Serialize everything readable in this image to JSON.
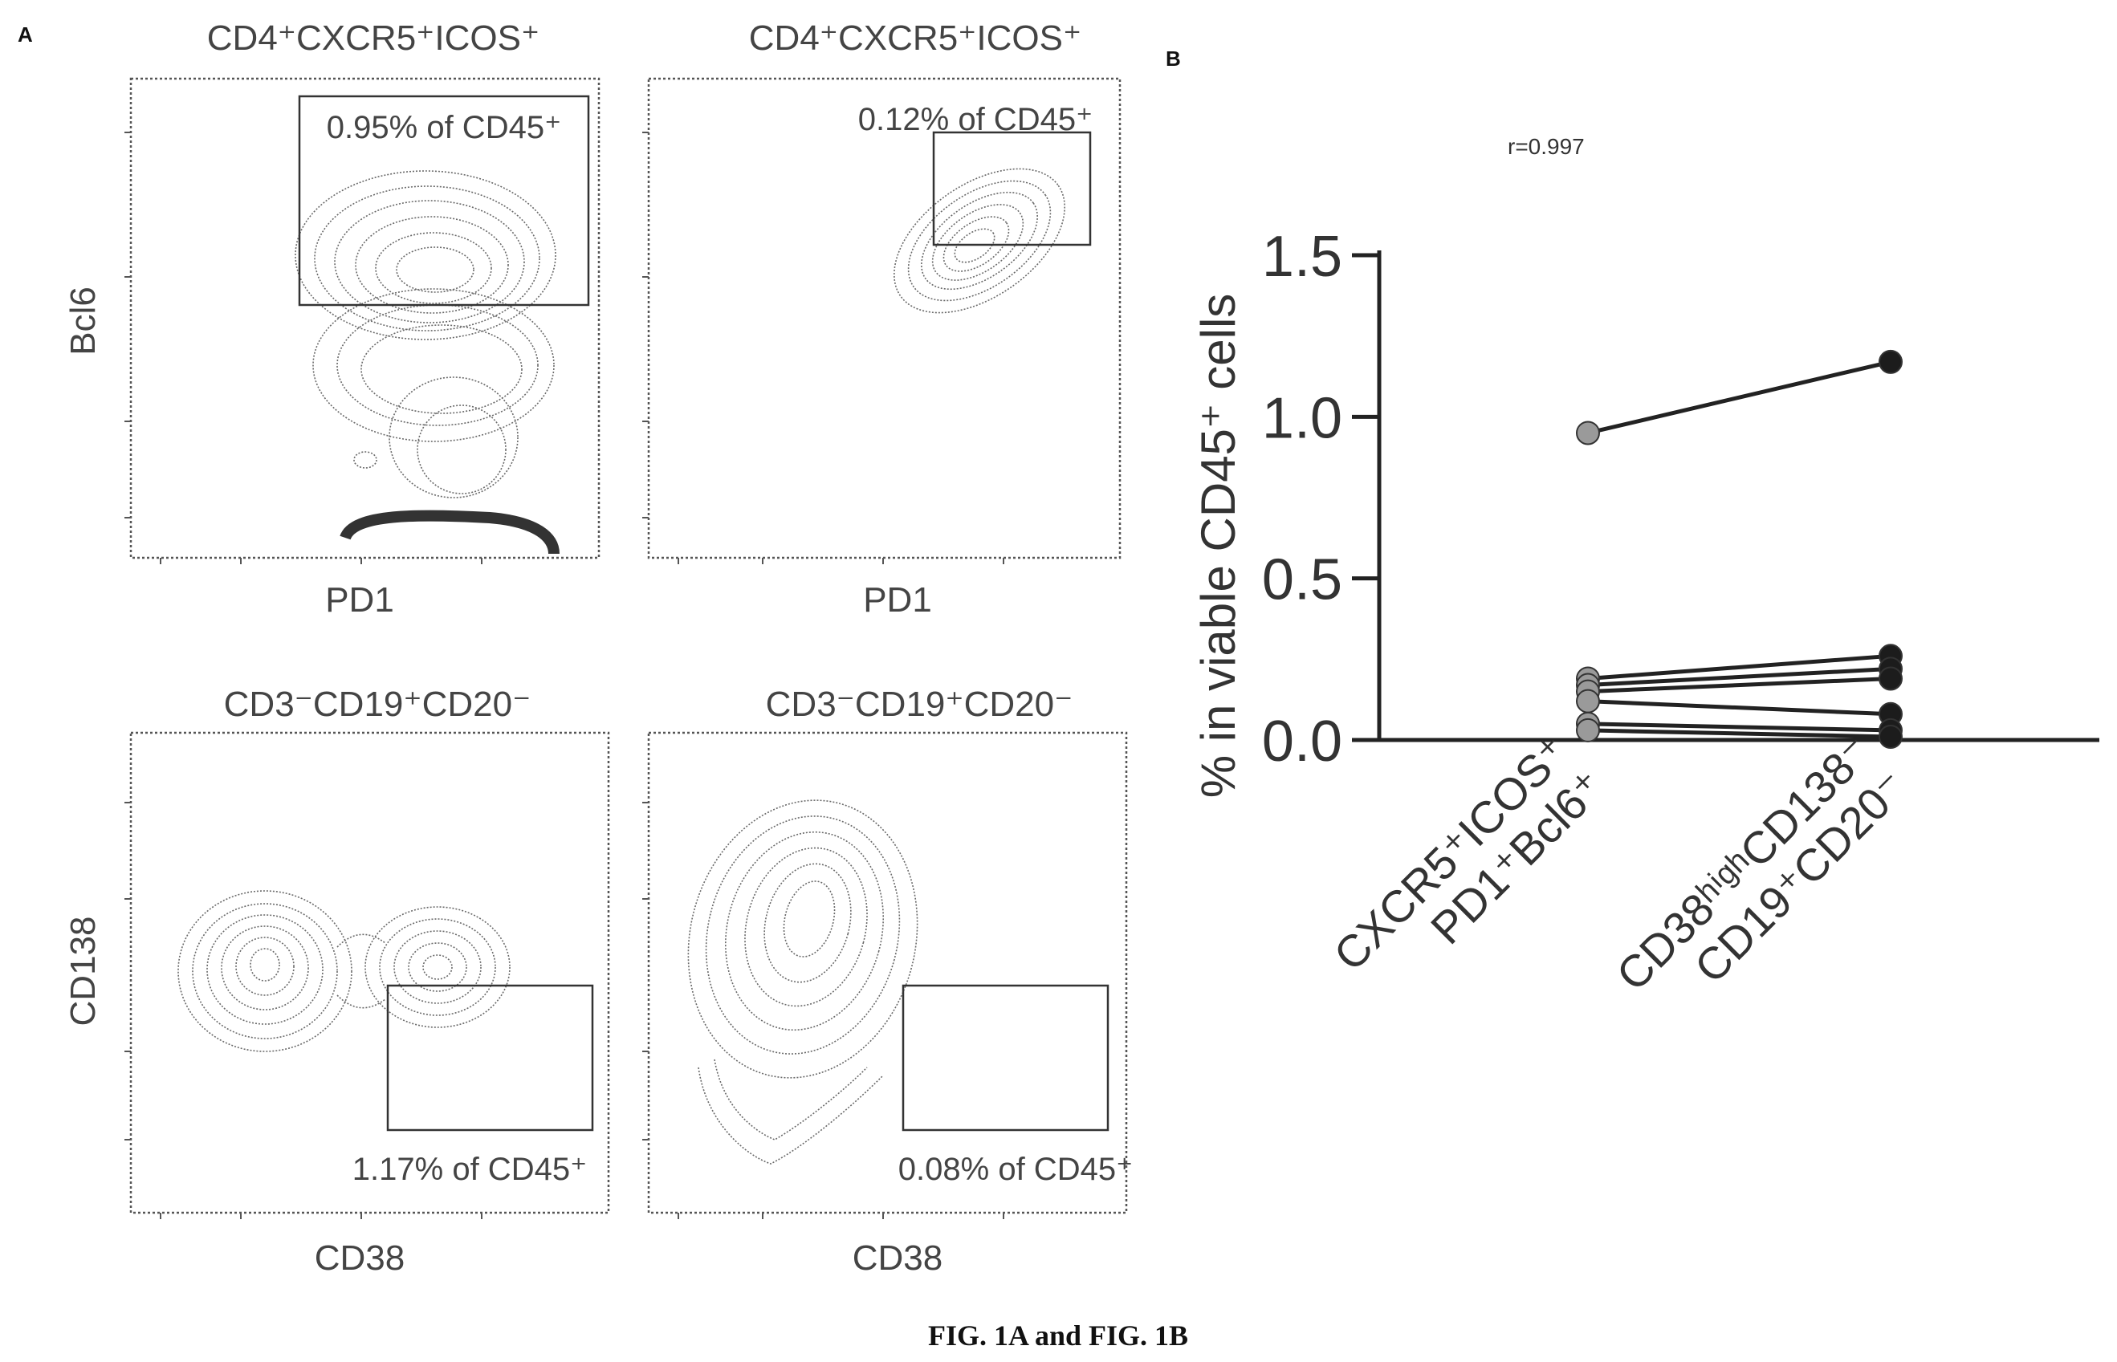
{
  "figure": {
    "caption": "FIG. 1A and FIG. 1B"
  },
  "panel_a": {
    "letter": "A",
    "plots": [
      {
        "title": "CD4⁺CXCR5⁺ICOS⁺",
        "xlabel": "PD1",
        "ylabel": "Bcl6",
        "gate_label": "0.95% of CD45⁺"
      },
      {
        "title": "CD4⁺CXCR5⁺ICOS⁺",
        "xlabel": "PD1",
        "ylabel": "",
        "gate_label": "0.12% of CD45⁺"
      },
      {
        "title": "CD3⁻CD19⁺CD20⁻",
        "xlabel": "CD38",
        "ylabel": "CD138",
        "gate_label": "1.17% of CD45⁺"
      },
      {
        "title": "CD3⁻CD19⁺CD20⁻",
        "xlabel": "CD38",
        "ylabel": "",
        "gate_label": "0.08% of CD45⁺"
      }
    ]
  },
  "panel_b": {
    "letter": "B",
    "annotation": "r=0.997",
    "ylabel": "% in viable CD45⁺ cells",
    "cat1_line1": "CXCR5⁺ICOS⁺",
    "cat1_line2": "PD1⁺Bcl6⁺",
    "cat2_line1": "CD38ʰⁱᵍʰCD138⁻",
    "cat2_line2": "CD19⁺CD20⁻"
  },
  "chart_data": {
    "type": "line",
    "categories": [
      "CXCR5⁺ICOS⁺ PD1⁺Bcl6⁺",
      "CD38ʰⁱᵍʰCD138⁻ CD19⁺CD20⁻"
    ],
    "ylabel": "% in viable CD45⁺ cells",
    "ylim": [
      0,
      1.5
    ],
    "yticks": [
      "0.0",
      "0.5",
      "1.0",
      "1.5"
    ],
    "annotation": "r=0.997",
    "series": [
      {
        "values": [
          0.95,
          1.17
        ]
      },
      {
        "values": [
          0.19,
          0.26
        ]
      },
      {
        "values": [
          0.17,
          0.22
        ]
      },
      {
        "values": [
          0.15,
          0.19
        ]
      },
      {
        "values": [
          0.12,
          0.08
        ]
      },
      {
        "values": [
          0.05,
          0.03
        ]
      },
      {
        "values": [
          0.03,
          0.01
        ]
      }
    ],
    "grid": false
  }
}
